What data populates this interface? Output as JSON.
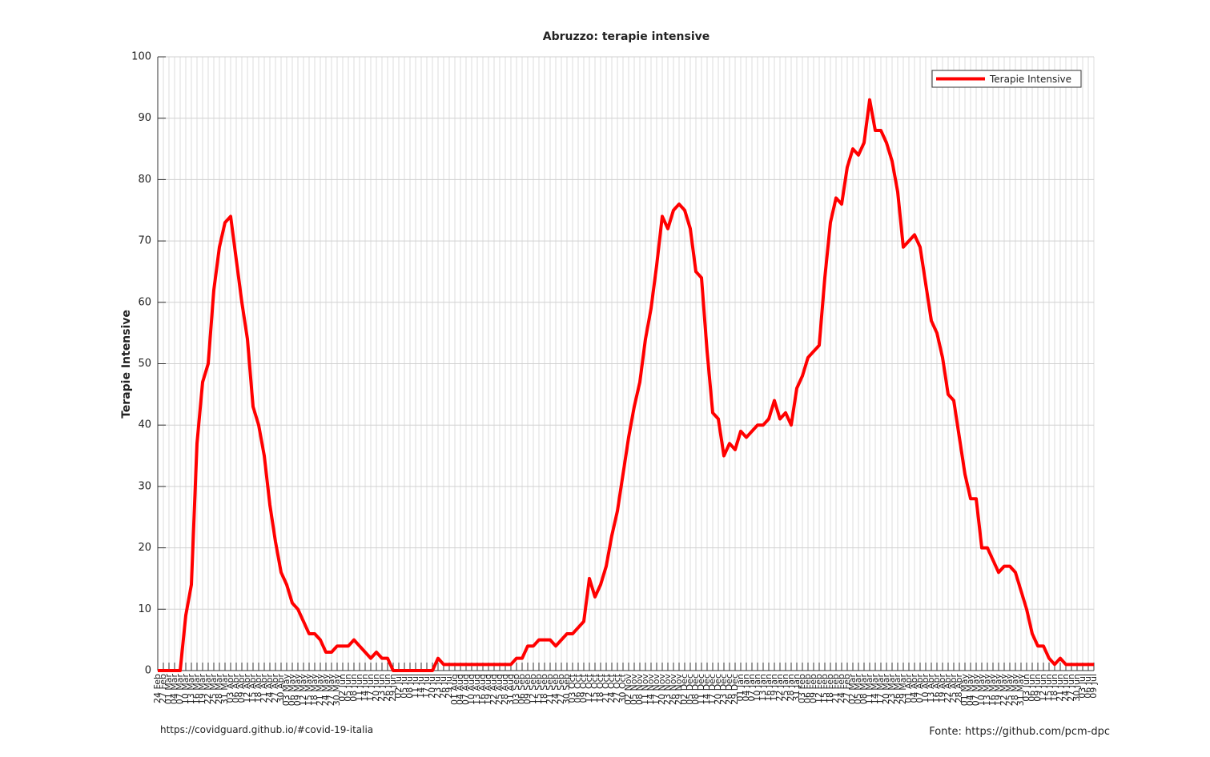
{
  "chart_data": {
    "type": "line",
    "title": "Abruzzo: terapie intensive",
    "ylabel": "Terapie Intensive",
    "footer_left": "https://covidguard.github.io/#covid-19-italia",
    "footer_right": "Fonte: https://github.com/pcm-dpc",
    "categories": [
      "24 Feb",
      "27 Feb",
      "01 Mar",
      "04 Mar",
      "07 Mar",
      "10 Mar",
      "13 Mar",
      "16 Mar",
      "19 Mar",
      "22 Mar",
      "25 Mar",
      "28 Mar",
      "31 Mar",
      "03 Apr",
      "06 Apr",
      "09 Apr",
      "12 Apr",
      "15 Apr",
      "18 Apr",
      "21 Apr",
      "24 Apr",
      "27 Apr",
      "30 Apr",
      "03 May",
      "06 May",
      "09 May",
      "12 May",
      "15 May",
      "18 May",
      "21 May",
      "24 May",
      "27 May",
      "30 May",
      "02 Jun",
      "05 Jun",
      "08 Jun",
      "11 Jun",
      "14 Jun",
      "17 Jun",
      "20 Jun",
      "23 Jun",
      "26 Jun",
      "29 Jun",
      "02 Jul",
      "05 Jul",
      "08 Jul",
      "11 Jul",
      "14 Jul",
      "17 Jul",
      "20 Jul",
      "23 Jul",
      "26 Jul",
      "29 Jul",
      "01 Aug",
      "04 Aug",
      "07 Aug",
      "10 Aug",
      "13 Aug",
      "16 Aug",
      "19 Aug",
      "22 Aug",
      "25 Aug",
      "28 Aug",
      "31 Aug",
      "03 Sep",
      "06 Sep",
      "09 Sep",
      "12 Sep",
      "15 Sep",
      "18 Sep",
      "21 Sep",
      "24 Sep",
      "27 Sep",
      "30 Sep",
      "03 Oct",
      "06 Oct",
      "09 Oct",
      "12 Oct",
      "15 Oct",
      "18 Oct",
      "21 Oct",
      "24 Oct",
      "27 Oct",
      "30 Oct",
      "02 Nov",
      "05 Nov",
      "08 Nov",
      "11 Nov",
      "14 Nov",
      "17 Nov",
      "20 Nov",
      "23 Nov",
      "26 Nov",
      "29 Nov",
      "02 Dec",
      "05 Dec",
      "08 Dec",
      "11 Dec",
      "14 Dec",
      "17 Dec",
      "20 Dec",
      "23 Dec",
      "26 Dec",
      "29 Dec",
      "01 Jan",
      "04 Jan",
      "07 Jan",
      "10 Jan",
      "13 Jan",
      "16 Jan",
      "19 Jan",
      "22 Jan",
      "25 Jan",
      "28 Jan",
      "31 Jan",
      "03 Feb",
      "06 Feb",
      "09 Feb",
      "12 Feb",
      "15 Feb",
      "18 Feb",
      "21 Feb",
      "24 Feb",
      "27 Feb",
      "02 Mar",
      "05 Mar",
      "08 Mar",
      "11 Mar",
      "14 Mar",
      "17 Mar",
      "20 Mar",
      "23 Mar",
      "26 Mar",
      "29 Mar",
      "01 Apr",
      "04 Apr",
      "07 Apr",
      "10 Apr",
      "13 Apr",
      "16 Apr",
      "19 Apr",
      "22 Apr",
      "25 Apr",
      "28 Apr",
      "01 May",
      "04 May",
      "07 May",
      "10 May",
      "13 May",
      "16 May",
      "19 May",
      "22 May",
      "25 May",
      "28 May",
      "31 May",
      "03 Jun",
      "06 Jun",
      "09 Jun",
      "12 Jun",
      "15 Jun",
      "18 Jun",
      "21 Jun",
      "24 Jun",
      "27 Jun",
      "30 Jun",
      "03 Jul",
      "06 Jul",
      "09 Jul"
    ],
    "series": [
      {
        "name": "Terapie Intensive",
        "color": "#ff0000",
        "values": [
          0,
          0,
          0,
          0,
          0,
          9,
          14,
          37,
          47,
          50,
          62,
          69,
          73,
          74,
          67,
          60,
          54,
          43,
          40,
          35,
          27,
          21,
          16,
          14,
          11,
          10,
          8,
          6,
          6,
          5,
          3,
          3,
          4,
          4,
          4,
          5,
          4,
          3,
          2,
          3,
          2,
          2,
          0,
          0,
          0,
          0,
          0,
          0,
          0,
          0,
          2,
          1,
          1,
          1,
          1,
          1,
          1,
          1,
          1,
          1,
          1,
          1,
          1,
          1,
          2,
          2,
          4,
          4,
          5,
          5,
          5,
          4,
          5,
          6,
          6,
          7,
          8,
          15,
          12,
          14,
          17,
          22,
          26,
          32,
          38,
          43,
          47,
          54,
          59,
          66,
          74,
          72,
          75,
          76,
          75,
          72,
          65,
          64,
          52,
          42,
          41,
          35,
          37,
          36,
          39,
          38,
          39,
          40,
          40,
          41,
          44,
          41,
          42,
          40,
          46,
          48,
          51,
          52,
          53,
          64,
          73,
          77,
          76,
          82,
          85,
          84,
          86,
          93,
          88,
          88,
          86,
          83,
          78,
          69,
          70,
          71,
          69,
          63,
          57,
          55,
          51,
          45,
          44,
          38,
          32,
          28,
          28,
          20,
          20,
          18,
          16,
          17,
          17,
          16,
          13,
          10,
          6,
          4,
          4,
          2,
          1,
          2,
          1,
          1,
          1,
          1,
          1,
          1
        ]
      }
    ],
    "ylim": [
      0,
      100
    ],
    "yticks": [
      0,
      10,
      20,
      30,
      40,
      50,
      60,
      70,
      80,
      90,
      100
    ],
    "grid": true,
    "legend": "top-right"
  }
}
